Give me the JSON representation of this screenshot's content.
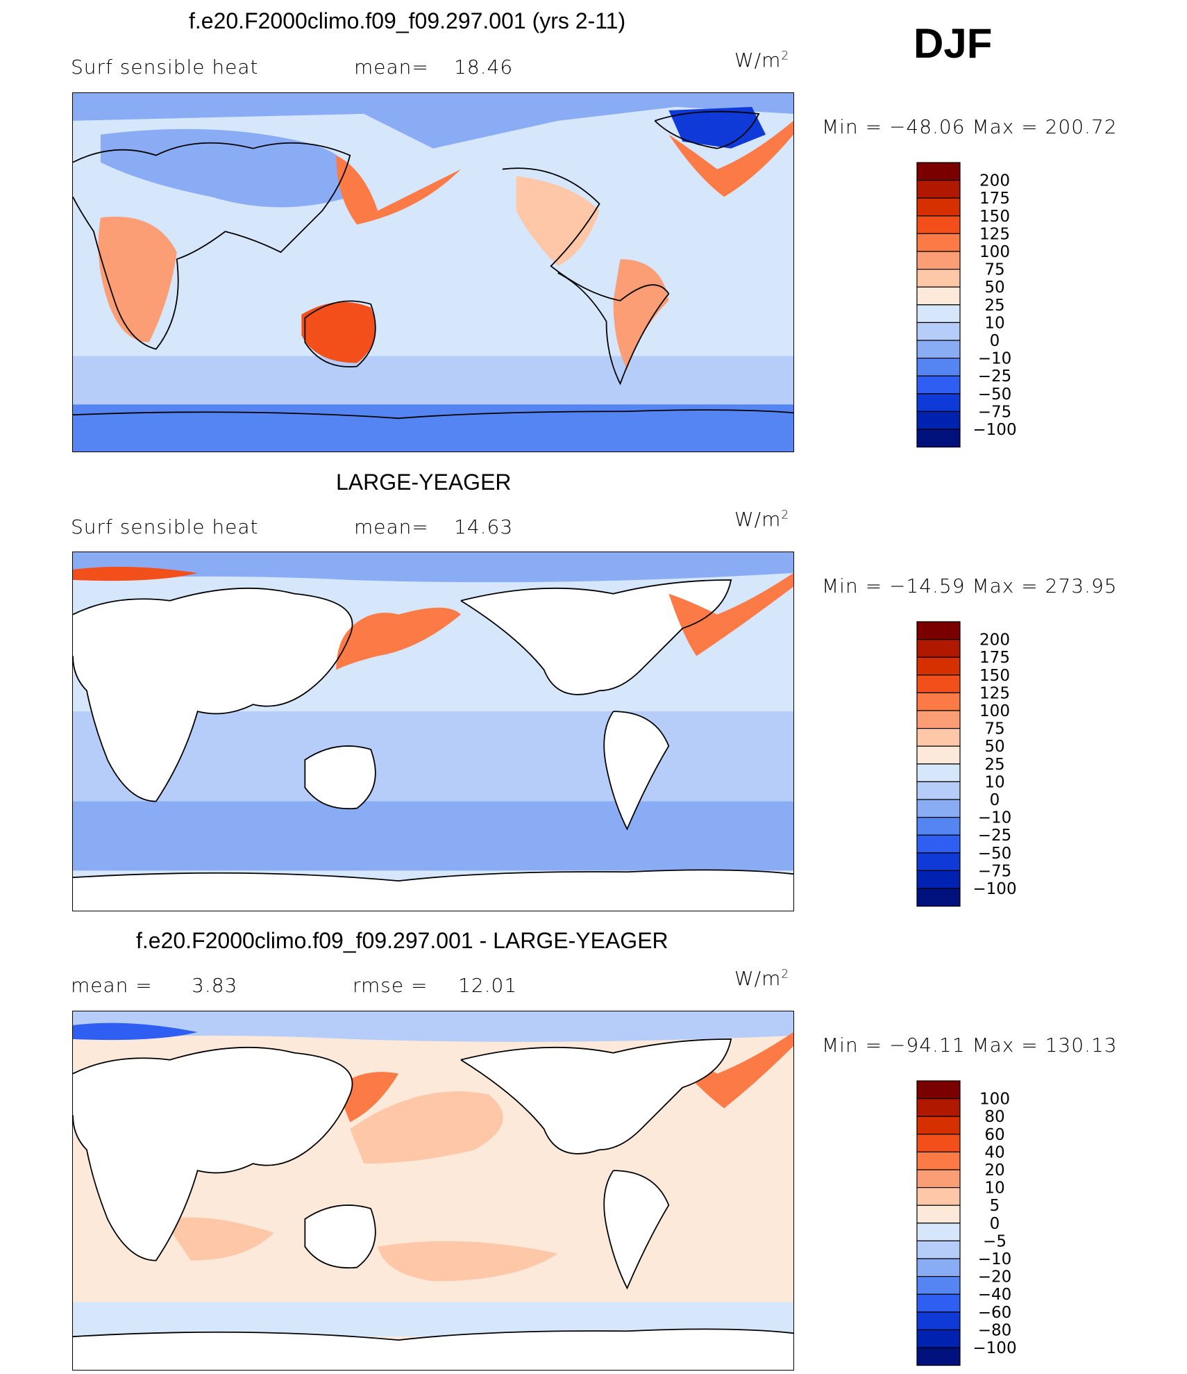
{
  "season": "DJF",
  "units_main": "W/m",
  "units_exp": "2",
  "panels": [
    {
      "title": "f.e20.F2000climo.f09_f09.297.001 (yrs 2-11)",
      "left_label": "Surf  sensible  heat",
      "mid_label": "mean=",
      "mid_value": "18.46",
      "minmax": "Min  =  −48.06  Max  =  200.72",
      "levels": [
        "200",
        "175",
        "150",
        "125",
        "100",
        "75",
        "50",
        "25",
        "10",
        "0",
        "−10",
        "−25",
        "−50",
        "−75",
        "−100"
      ]
    },
    {
      "title": "LARGE-YEAGER",
      "left_label": "Surf  sensible  heat",
      "mid_label": "mean=",
      "mid_value": "14.63",
      "minmax": "Min  =  −14.59  Max  =  273.95",
      "levels": [
        "200",
        "175",
        "150",
        "125",
        "100",
        "75",
        "50",
        "25",
        "10",
        "0",
        "−10",
        "−25",
        "−50",
        "−75",
        "−100"
      ]
    },
    {
      "title": "f.e20.F2000climo.f09_f09.297.001 - LARGE-YEAGER",
      "left_label": "mean  =",
      "left_value": "3.83",
      "mid_label": "rmse  =",
      "mid_value": "12.01",
      "minmax": "Min  =  −94.11  Max  =  130.13",
      "levels": [
        "100",
        "80",
        "60",
        "40",
        "20",
        "10",
        "5",
        "0",
        "−5",
        "−10",
        "−20",
        "−40",
        "−60",
        "−80",
        "−100"
      ]
    }
  ],
  "colors": {
    "palette": [
      "#7a0000",
      "#b01800",
      "#d73000",
      "#f24f1b",
      "#fb7a45",
      "#fc9e75",
      "#fdc7a8",
      "#fde9da",
      "#d6e6fb",
      "#b5cdf8",
      "#8aacf4",
      "#5585f2",
      "#2e5ef2",
      "#0f3ad8",
      "#0022b0",
      "#00107d"
    ]
  },
  "chart_data": [
    {
      "type": "heatmap",
      "title": "f.e20.F2000climo.f09_f09.297.001 (yrs 2-11)",
      "variable": "Surf sensible heat",
      "units": "W/m2",
      "mean": 18.46,
      "min": -48.06,
      "max": 200.72,
      "contour_levels": [
        -100,
        -75,
        -50,
        -25,
        -10,
        0,
        10,
        25,
        50,
        75,
        100,
        125,
        150,
        175,
        200
      ]
    },
    {
      "type": "heatmap",
      "title": "LARGE-YEAGER",
      "variable": "Surf sensible heat",
      "units": "W/m2",
      "mean": 14.63,
      "min": -14.59,
      "max": 273.95,
      "contour_levels": [
        -100,
        -75,
        -50,
        -25,
        -10,
        0,
        10,
        25,
        50,
        75,
        100,
        125,
        150,
        175,
        200
      ]
    },
    {
      "type": "heatmap",
      "title": "f.e20.F2000climo.f09_f09.297.001 - LARGE-YEAGER",
      "units": "W/m2",
      "mean": 3.83,
      "rmse": 12.01,
      "min": -94.11,
      "max": 130.13,
      "contour_levels": [
        -100,
        -80,
        -60,
        -40,
        -20,
        -10,
        -5,
        0,
        5,
        10,
        20,
        40,
        60,
        80,
        100
      ]
    }
  ]
}
